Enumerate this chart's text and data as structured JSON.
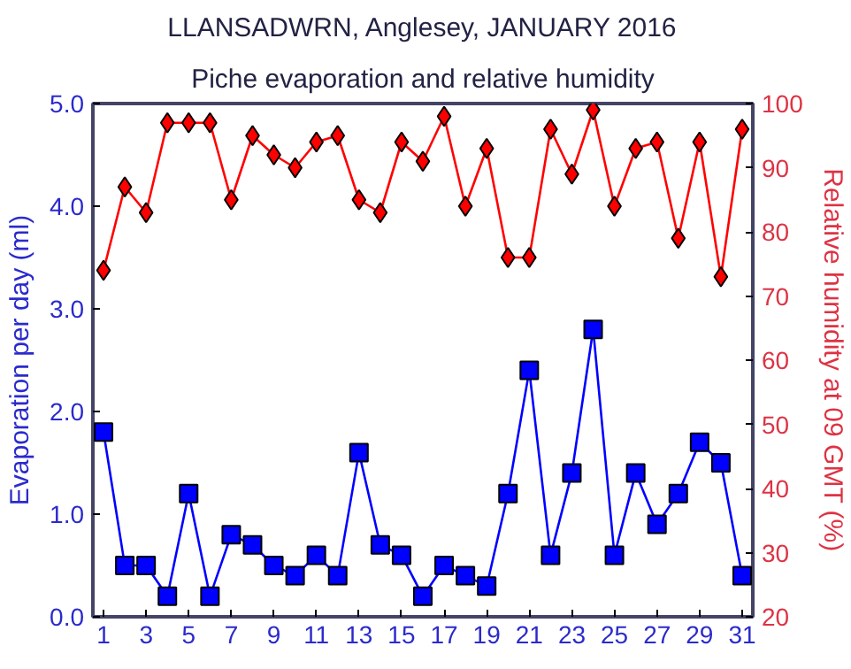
{
  "chart_data": {
    "type": "line",
    "title": "LLANSADWRN, Anglesey, JANUARY 2016",
    "subtitle": "Piche evaporation and relative humidity",
    "ylabel": "Evaporation per day (ml)",
    "y2label": "Relative humidity at 09 GMT (%)",
    "x": [
      1,
      2,
      3,
      4,
      5,
      6,
      7,
      8,
      9,
      10,
      11,
      12,
      13,
      14,
      15,
      16,
      17,
      18,
      19,
      20,
      21,
      22,
      23,
      24,
      25,
      26,
      27,
      28,
      29,
      30,
      31
    ],
    "xlim": [
      0.5,
      31.5
    ],
    "xticks": [
      1,
      3,
      5,
      7,
      9,
      11,
      13,
      15,
      17,
      19,
      21,
      23,
      25,
      27,
      29,
      31
    ],
    "ylim": [
      0,
      5
    ],
    "yticks": [
      {
        "value": 0,
        "label": "0.0"
      },
      {
        "value": 1,
        "label": "1.0"
      },
      {
        "value": 2,
        "label": "2.0"
      },
      {
        "value": 3,
        "label": "3.0"
      },
      {
        "value": 4,
        "label": "4.0"
      },
      {
        "value": 5,
        "label": "5.0"
      }
    ],
    "y2lim": [
      20,
      100
    ],
    "y2ticks": [
      20,
      30,
      40,
      50,
      60,
      70,
      80,
      90,
      100
    ],
    "grid": false,
    "series": [
      {
        "color": "#0000ff",
        "marker": "square",
        "values": [
          1.8,
          0.5,
          0.5,
          0.2,
          1.2,
          0.2,
          0.8,
          0.7,
          0.5,
          0.4,
          0.6,
          0.4,
          1.6,
          0.7,
          0.6,
          0.2,
          0.5,
          0.4,
          0.3,
          1.2,
          2.4,
          0.6,
          1.4,
          2.8,
          0.6,
          1.4,
          0.9,
          1.2,
          1.7,
          1.5,
          0.4
        ]
      },
      {
        "color": "#ff0000",
        "marker": "diamond",
        "axis": "y2",
        "values": [
          74,
          87,
          83,
          97,
          97,
          97,
          85,
          95,
          92,
          90,
          94,
          95,
          85,
          83,
          94,
          91,
          98,
          84,
          93,
          76,
          76,
          96,
          89,
          99,
          84,
          93,
          94,
          79,
          94,
          73,
          96
        ]
      }
    ]
  }
}
